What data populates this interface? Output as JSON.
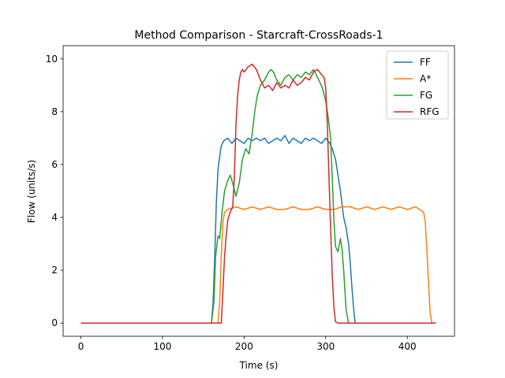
{
  "chart_data": {
    "type": "line",
    "title": "Method Comparison - Starcraft-CrossRoads-1",
    "xlabel": "Time (s)",
    "ylabel": "Flow (units/s)",
    "xlim": [
      -21.8,
      457.8
    ],
    "ylim": [
      -0.5,
      10.5
    ],
    "xticks": [
      0,
      100,
      200,
      300,
      400
    ],
    "yticks": [
      0,
      2,
      4,
      6,
      8,
      10
    ],
    "grid": false,
    "legend_position": "top-right",
    "series": [
      {
        "name": "FF",
        "color": "#1f77b4",
        "x": [
          0,
          160,
          162,
          164,
          166,
          168,
          170,
          172,
          175,
          180,
          185,
          190,
          195,
          200,
          205,
          210,
          215,
          220,
          225,
          230,
          235,
          240,
          245,
          250,
          255,
          260,
          265,
          270,
          275,
          280,
          285,
          290,
          295,
          300,
          305,
          308,
          312,
          315,
          318,
          320,
          322,
          325,
          328,
          330,
          332,
          334,
          336,
          340,
          435
        ],
        "y": [
          0,
          0,
          0.8,
          2.5,
          4.6,
          5.8,
          6.3,
          6.7,
          6.9,
          7.0,
          6.8,
          7.0,
          6.9,
          6.8,
          7.0,
          6.9,
          7.0,
          6.9,
          7.0,
          6.8,
          6.9,
          7.0,
          6.9,
          7.1,
          6.8,
          7.0,
          6.9,
          6.8,
          7.0,
          6.9,
          7.0,
          6.9,
          6.8,
          7.0,
          6.8,
          6.6,
          6.2,
          5.6,
          5.0,
          4.5,
          4.0,
          3.6,
          3.0,
          2.3,
          1.4,
          0.6,
          0,
          0,
          0
        ]
      },
      {
        "name": "A*",
        "color": "#ff7f0e",
        "x": [
          0,
          168,
          170,
          172,
          174,
          176,
          180,
          190,
          200,
          210,
          220,
          230,
          240,
          250,
          260,
          270,
          280,
          290,
          300,
          310,
          320,
          330,
          340,
          350,
          360,
          370,
          380,
          390,
          400,
          410,
          415,
          420,
          422,
          424,
          426,
          428,
          430,
          435
        ],
        "y": [
          0,
          0,
          0.8,
          2.6,
          3.8,
          4.2,
          4.3,
          4.4,
          4.3,
          4.4,
          4.3,
          4.4,
          4.3,
          4.3,
          4.4,
          4.3,
          4.3,
          4.4,
          4.3,
          4.3,
          4.4,
          4.4,
          4.3,
          4.4,
          4.3,
          4.4,
          4.3,
          4.4,
          4.3,
          4.4,
          4.3,
          4.2,
          3.8,
          2.8,
          1.5,
          0.4,
          0,
          0
        ]
      },
      {
        "name": "FG",
        "color": "#2ca02c",
        "x": [
          0,
          160,
          163,
          165,
          168,
          170,
          173,
          176,
          180,
          183,
          186,
          190,
          194,
          198,
          202,
          206,
          210,
          213,
          216,
          220,
          225,
          230,
          233,
          236,
          240,
          245,
          250,
          255,
          260,
          265,
          270,
          275,
          280,
          285,
          290,
          293,
          296,
          300,
          303,
          306,
          308,
          310,
          312,
          315,
          318,
          320,
          322,
          325,
          328,
          335,
          435
        ],
        "y": [
          0,
          0,
          0.8,
          2.5,
          3.3,
          3.2,
          4.2,
          5.0,
          5.4,
          5.6,
          5.3,
          4.8,
          5.3,
          6.2,
          6.6,
          6.4,
          7.2,
          8.0,
          8.6,
          9.0,
          9.2,
          9.5,
          9.6,
          9.5,
          9.2,
          9.0,
          9.3,
          9.4,
          9.2,
          9.4,
          9.3,
          9.5,
          9.4,
          9.6,
          9.3,
          9.1,
          8.9,
          8.4,
          7.8,
          7.0,
          5.5,
          3.9,
          2.9,
          2.7,
          3.2,
          2.8,
          2.0,
          0.5,
          0,
          0,
          0
        ]
      },
      {
        "name": "RFG",
        "color": "#d62728",
        "x": [
          0,
          172,
          174,
          176,
          178,
          180,
          183,
          186,
          188,
          190,
          192,
          194,
          196,
          198,
          200,
          205,
          210,
          215,
          220,
          225,
          230,
          235,
          240,
          245,
          250,
          255,
          260,
          265,
          270,
          275,
          280,
          285,
          290,
          295,
          298,
          300,
          302,
          304,
          306,
          308,
          310,
          312,
          315,
          320,
          435
        ],
        "y": [
          0,
          0,
          1.2,
          2.5,
          3.3,
          3.9,
          4.2,
          4.4,
          5.5,
          7.5,
          8.6,
          9.2,
          9.5,
          9.6,
          9.5,
          9.7,
          9.8,
          9.6,
          9.2,
          8.9,
          9.0,
          8.8,
          9.1,
          8.9,
          9.0,
          8.9,
          9.2,
          9.0,
          9.1,
          9.3,
          9.2,
          9.5,
          9.6,
          9.4,
          9.3,
          8.9,
          7.5,
          5.5,
          3.6,
          1.8,
          0.6,
          0.05,
          0,
          0,
          0
        ]
      }
    ]
  }
}
